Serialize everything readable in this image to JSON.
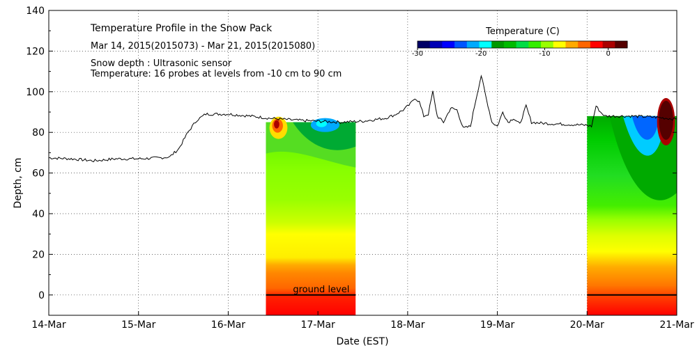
{
  "chart_data": {
    "type": "area",
    "title": "Temperature Profile in the Snow Pack",
    "subtitle": "Mar 14, 2015(2015073) - Mar 21, 2015(2015080)",
    "notes": [
      "Snow depth : Ultrasonic sensor",
      "Temperature: 16 probes at levels from -10 cm to 90 cm"
    ],
    "xlabel": "Date (EST)",
    "ylabel": "Depth, cm",
    "xlim": [
      0,
      7
    ],
    "ylim": [
      -10,
      140
    ],
    "grid": true,
    "x_ticks": [
      {
        "v": 0,
        "label": "14-Mar"
      },
      {
        "v": 1,
        "label": "15-Mar"
      },
      {
        "v": 2,
        "label": "16-Mar"
      },
      {
        "v": 3,
        "label": "17-Mar"
      },
      {
        "v": 4,
        "label": "18-Mar"
      },
      {
        "v": 5,
        "label": "19-Mar"
      },
      {
        "v": 6,
        "label": "20-Mar"
      },
      {
        "v": 7,
        "label": "21-Mar"
      }
    ],
    "y_ticks": [
      0,
      20,
      40,
      60,
      80,
      100,
      120,
      140
    ],
    "ground_level_label": "ground level",
    "colorbar": {
      "label": "Temperature (C)",
      "range": [
        -30,
        3
      ],
      "ticks": [
        -30,
        -20,
        -10,
        0
      ],
      "colors": [
        "#000066",
        "#0000b4",
        "#0000ff",
        "#0055ff",
        "#00aaff",
        "#00ffff",
        "#009900",
        "#00bb00",
        "#00dd44",
        "#33ee00",
        "#99ff00",
        "#ffff00",
        "#ffaa00",
        "#ff6600",
        "#ff0000",
        "#aa0000",
        "#550000"
      ]
    },
    "snow_depth_series": {
      "name": "Snow depth",
      "points": [
        [
          0.0,
          67.5
        ],
        [
          0.25,
          67.0
        ],
        [
          0.5,
          66.0
        ],
        [
          0.75,
          67.0
        ],
        [
          1.0,
          67.0
        ],
        [
          1.25,
          67.5
        ],
        [
          1.35,
          68.0
        ],
        [
          1.45,
          72.0
        ],
        [
          1.55,
          80.0
        ],
        [
          1.65,
          86.0
        ],
        [
          1.75,
          89.0
        ],
        [
          2.0,
          89.0
        ],
        [
          2.25,
          88.0
        ],
        [
          2.45,
          87.0
        ],
        [
          2.75,
          86.0
        ],
        [
          3.0,
          85.5
        ],
        [
          3.25,
          85.0
        ],
        [
          3.5,
          85.5
        ],
        [
          3.75,
          87.0
        ],
        [
          3.85,
          88.5
        ],
        [
          3.95,
          91.0
        ],
        [
          4.03,
          94.0
        ],
        [
          4.08,
          97.0
        ],
        [
          4.13,
          95.0
        ],
        [
          4.18,
          88.0
        ],
        [
          4.23,
          89.0
        ],
        [
          4.28,
          100.0
        ],
        [
          4.33,
          88.0
        ],
        [
          4.4,
          85.0
        ],
        [
          4.48,
          92.0
        ],
        [
          4.55,
          91.0
        ],
        [
          4.62,
          82.0
        ],
        [
          4.7,
          83.0
        ],
        [
          4.76,
          96.0
        ],
        [
          4.82,
          108.0
        ],
        [
          4.88,
          96.0
        ],
        [
          4.94,
          85.0
        ],
        [
          5.0,
          83.0
        ],
        [
          5.06,
          90.0
        ],
        [
          5.12,
          85.0
        ],
        [
          5.18,
          87.0
        ],
        [
          5.25,
          84.0
        ],
        [
          5.32,
          93.0
        ],
        [
          5.38,
          85.0
        ],
        [
          5.5,
          84.5
        ],
        [
          5.75,
          84.0
        ],
        [
          6.0,
          83.5
        ],
        [
          6.05,
          83.0
        ],
        [
          6.1,
          93.0
        ],
        [
          6.15,
          90.0
        ],
        [
          6.2,
          88.0
        ],
        [
          6.5,
          88.0
        ],
        [
          6.75,
          87.5
        ],
        [
          7.0,
          86.5
        ]
      ]
    },
    "temperature_blocks": [
      {
        "x_start": 2.42,
        "x_end": 3.42,
        "top": 85
      },
      {
        "x_start": 6.0,
        "x_end": 7.0,
        "top": 88
      }
    ]
  }
}
